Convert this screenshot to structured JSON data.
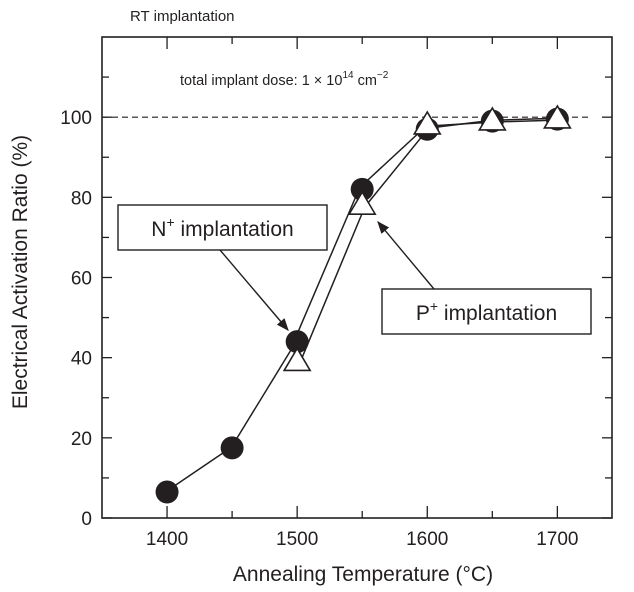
{
  "chart_data": {
    "type": "line",
    "title": "RT implantation",
    "annotation": {
      "prefix": "total implant dose: 1 × 10",
      "exp1": "14",
      "unit": " cm",
      "exp2": "−2"
    },
    "xlabel": "Annealing Temperature (°C)",
    "ylabel": "Electrical Activation Ratio (%)",
    "xlim": [
      1350,
      1742
    ],
    "ylim": [
      0,
      120
    ],
    "xticks": [
      1400,
      1500,
      1600,
      1700
    ],
    "xminor": [
      1450,
      1550,
      1650
    ],
    "yticks": [
      0,
      20,
      40,
      60,
      80,
      100
    ],
    "yminor": [
      10,
      30,
      50,
      70,
      90,
      110
    ],
    "reference_line": {
      "y": 100,
      "style": "dashed"
    },
    "grid": false,
    "series": [
      {
        "name": "N+ implantation",
        "label_main": "N",
        "label_sup": "+",
        "label_rest": " implantation",
        "marker": "filled-circle",
        "x": [
          1400,
          1450,
          1500,
          1550,
          1600,
          1650,
          1700
        ],
        "y": [
          6.5,
          17.5,
          44,
          82,
          97,
          99,
          99.5
        ]
      },
      {
        "name": "P+ implantation",
        "label_main": "P",
        "label_sup": "+",
        "label_rest": " implantation",
        "marker": "open-triangle",
        "x": [
          1500,
          1550,
          1600,
          1650,
          1700
        ],
        "y": [
          39,
          78,
          98,
          99,
          99.5
        ]
      }
    ],
    "callouts": [
      {
        "series": 0,
        "box_anchor": {
          "x": 1380,
          "y": 73
        },
        "arrow_to": {
          "x": 1500,
          "y": 44
        }
      },
      {
        "series": 1,
        "box_anchor": {
          "x": 1583,
          "y": 51
        },
        "arrow_to": {
          "x": 1555,
          "y": 73
        }
      }
    ],
    "colors": {
      "ink": "#231f20",
      "background": "#ffffff"
    }
  }
}
